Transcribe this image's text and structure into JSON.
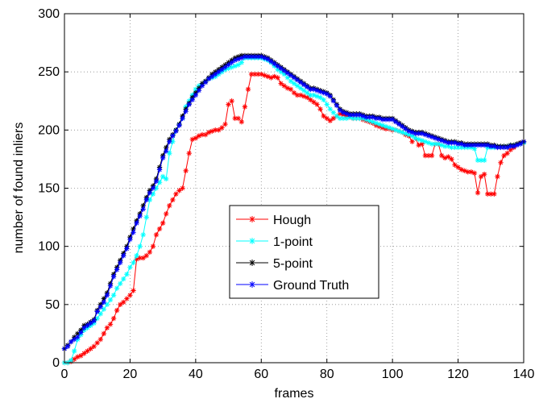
{
  "chart_data": {
    "type": "line",
    "xlabel": "frames",
    "ylabel": "number of found inliers",
    "xlim": [
      0,
      140
    ],
    "ylim": [
      0,
      300
    ],
    "xticks": [
      0,
      20,
      40,
      60,
      80,
      100,
      120,
      140
    ],
    "yticks": [
      0,
      50,
      100,
      150,
      200,
      250,
      300
    ],
    "grid": true,
    "legend_position": "center",
    "marker": "asterisk",
    "series": [
      {
        "name": "Hough",
        "color": "#ff0000",
        "x": [
          0,
          1,
          2,
          3,
          4,
          5,
          6,
          7,
          8,
          9,
          10,
          11,
          12,
          13,
          14,
          15,
          16,
          17,
          18,
          19,
          20,
          21,
          22,
          23,
          24,
          25,
          26,
          27,
          28,
          29,
          30,
          31,
          32,
          33,
          34,
          35,
          36,
          37,
          38,
          39,
          40,
          41,
          42,
          43,
          44,
          45,
          46,
          47,
          48,
          49,
          50,
          51,
          52,
          53,
          54,
          55,
          56,
          57,
          58,
          59,
          60,
          61,
          62,
          63,
          64,
          65,
          66,
          67,
          68,
          69,
          70,
          71,
          72,
          73,
          74,
          75,
          76,
          77,
          78,
          79,
          80,
          81,
          82,
          83,
          84,
          85,
          86,
          87,
          88,
          89,
          90,
          91,
          92,
          93,
          94,
          95,
          96,
          97,
          98,
          99,
          100,
          101,
          102,
          103,
          104,
          105,
          106,
          107,
          108,
          109,
          110,
          111,
          112,
          113,
          114,
          115,
          116,
          117,
          118,
          119,
          120,
          121,
          122,
          123,
          124,
          125,
          126,
          127,
          128,
          129,
          130,
          131,
          132,
          133,
          134,
          135,
          136,
          137,
          138,
          139,
          140
        ],
        "y": [
          0,
          0,
          1,
          3,
          5,
          6,
          8,
          10,
          12,
          14,
          17,
          20,
          25,
          30,
          33,
          38,
          45,
          50,
          52,
          55,
          58,
          62,
          89,
          90,
          90,
          92,
          95,
          100,
          110,
          115,
          120,
          128,
          135,
          140,
          145,
          148,
          150,
          165,
          180,
          192,
          193,
          195,
          196,
          196,
          198,
          199,
          200,
          200,
          202,
          205,
          222,
          225,
          210,
          210,
          207,
          220,
          235,
          248,
          248,
          248,
          248,
          247,
          246,
          245,
          246,
          245,
          240,
          238,
          236,
          235,
          232,
          230,
          230,
          229,
          228,
          226,
          224,
          222,
          218,
          212,
          210,
          208,
          210,
          212,
          214,
          213,
          212,
          211,
          210,
          210,
          210,
          209,
          208,
          207,
          206,
          204,
          203,
          202,
          201,
          201,
          200,
          200,
          199,
          198,
          196,
          195,
          190,
          193,
          187,
          188,
          178,
          178,
          178,
          188,
          188,
          178,
          176,
          177,
          175,
          170,
          168,
          166,
          165,
          164,
          164,
          163,
          146,
          160,
          162,
          145,
          145,
          145,
          160,
          172,
          178,
          180,
          183,
          185,
          188,
          189,
          190
        ]
      },
      {
        "name": "1-point",
        "color": "#00ffff",
        "x": [
          0,
          1,
          2,
          3,
          4,
          5,
          6,
          7,
          8,
          9,
          10,
          11,
          12,
          13,
          14,
          15,
          16,
          17,
          18,
          19,
          20,
          21,
          22,
          23,
          24,
          25,
          26,
          27,
          28,
          29,
          30,
          31,
          32,
          33,
          34,
          35,
          36,
          37,
          38,
          39,
          40,
          41,
          42,
          43,
          44,
          45,
          46,
          47,
          48,
          49,
          50,
          51,
          52,
          53,
          54,
          55,
          56,
          57,
          58,
          59,
          60,
          61,
          62,
          63,
          64,
          65,
          66,
          67,
          68,
          69,
          70,
          71,
          72,
          73,
          74,
          75,
          76,
          77,
          78,
          79,
          80,
          81,
          82,
          83,
          84,
          85,
          86,
          87,
          88,
          89,
          90,
          91,
          92,
          93,
          94,
          95,
          96,
          97,
          98,
          99,
          100,
          101,
          102,
          103,
          104,
          105,
          106,
          107,
          108,
          109,
          110,
          111,
          112,
          113,
          114,
          115,
          116,
          117,
          118,
          119,
          120,
          121,
          122,
          123,
          124,
          125,
          126,
          127,
          128,
          129,
          130,
          131,
          132,
          133,
          134,
          135,
          136,
          137,
          138,
          139,
          140
        ],
        "y": [
          0,
          0,
          2,
          10,
          20,
          24,
          28,
          30,
          32,
          34,
          38,
          42,
          46,
          50,
          54,
          58,
          64,
          68,
          72,
          76,
          82,
          86,
          92,
          100,
          110,
          125,
          140,
          145,
          150,
          155,
          160,
          158,
          180,
          190,
          200,
          205,
          210,
          220,
          225,
          230,
          235,
          238,
          240,
          242,
          244,
          245,
          246,
          248,
          250,
          252,
          253,
          254,
          255,
          256,
          258,
          262,
          262,
          262,
          262,
          262,
          262,
          261,
          260,
          258,
          255,
          252,
          250,
          248,
          245,
          242,
          240,
          238,
          236,
          234,
          232,
          230,
          230,
          229,
          228,
          226,
          222,
          218,
          215,
          212,
          210,
          210,
          210,
          211,
          210,
          210,
          210,
          210,
          209,
          208,
          207,
          206,
          205,
          204,
          203,
          202,
          201,
          200,
          199,
          198,
          197,
          196,
          195,
          193,
          192,
          191,
          190,
          189,
          188,
          188,
          188,
          187,
          186,
          186,
          185,
          185,
          185,
          185,
          185,
          185,
          185,
          184,
          174,
          174,
          174,
          185,
          185,
          185,
          186,
          186,
          186,
          186,
          187,
          187,
          188,
          188,
          189
        ]
      },
      {
        "name": "5-point",
        "color": "#000000",
        "x": [
          0,
          1,
          2,
          3,
          4,
          5,
          6,
          7,
          8,
          9,
          10,
          11,
          12,
          13,
          14,
          15,
          16,
          17,
          18,
          19,
          20,
          21,
          22,
          23,
          24,
          25,
          26,
          27,
          28,
          29,
          30,
          31,
          32,
          33,
          34,
          35,
          36,
          37,
          38,
          39,
          40,
          41,
          42,
          43,
          44,
          45,
          46,
          47,
          48,
          49,
          50,
          51,
          52,
          53,
          54,
          55,
          56,
          57,
          58,
          59,
          60,
          61,
          62,
          63,
          64,
          65,
          66,
          67,
          68,
          69,
          70,
          71,
          72,
          73,
          74,
          75,
          76,
          77,
          78,
          79,
          80,
          81,
          82,
          83,
          84,
          85,
          86,
          87,
          88,
          89,
          90,
          91,
          92,
          93,
          94,
          95,
          96,
          97,
          98,
          99,
          100,
          101,
          102,
          103,
          104,
          105,
          106,
          107,
          108,
          109,
          110,
          111,
          112,
          113,
          114,
          115,
          116,
          117,
          118,
          119,
          120,
          121,
          122,
          123,
          124,
          125,
          126,
          127,
          128,
          129,
          130,
          131,
          132,
          133,
          134,
          135,
          136,
          137,
          138,
          139,
          140
        ],
        "y": [
          12,
          15,
          18,
          22,
          25,
          28,
          32,
          33,
          35,
          37,
          45,
          50,
          55,
          60,
          68,
          76,
          82,
          88,
          94,
          100,
          108,
          115,
          122,
          128,
          135,
          142,
          148,
          152,
          158,
          168,
          178,
          185,
          192,
          196,
          200,
          205,
          212,
          218,
          223,
          228,
          232,
          236,
          240,
          242,
          245,
          248,
          250,
          252,
          254,
          256,
          258,
          260,
          262,
          263,
          264,
          264,
          264,
          264,
          264,
          264,
          264,
          263,
          262,
          260,
          258,
          256,
          254,
          252,
          250,
          248,
          246,
          244,
          242,
          240,
          238,
          236,
          236,
          235,
          234,
          233,
          232,
          230,
          226,
          222,
          218,
          216,
          215,
          214,
          214,
          214,
          214,
          213,
          212,
          212,
          212,
          211,
          211,
          210,
          210,
          210,
          210,
          208,
          206,
          204,
          202,
          200,
          199,
          198,
          198,
          198,
          197,
          196,
          195,
          194,
          193,
          192,
          191,
          190,
          190,
          190,
          189,
          189,
          188,
          188,
          188,
          188,
          188,
          188,
          188,
          188,
          187,
          187,
          186,
          186,
          186,
          186,
          187,
          187,
          188,
          189,
          190
        ]
      },
      {
        "name": "Ground Truth",
        "color": "#0000ff",
        "x": [
          0,
          1,
          2,
          3,
          4,
          5,
          6,
          7,
          8,
          9,
          10,
          11,
          12,
          13,
          14,
          15,
          16,
          17,
          18,
          19,
          20,
          21,
          22,
          23,
          24,
          25,
          26,
          27,
          28,
          29,
          30,
          31,
          32,
          33,
          34,
          35,
          36,
          37,
          38,
          39,
          40,
          41,
          42,
          43,
          44,
          45,
          46,
          47,
          48,
          49,
          50,
          51,
          52,
          53,
          54,
          55,
          56,
          57,
          58,
          59,
          60,
          61,
          62,
          63,
          64,
          65,
          66,
          67,
          68,
          69,
          70,
          71,
          72,
          73,
          74,
          75,
          76,
          77,
          78,
          79,
          80,
          81,
          82,
          83,
          84,
          85,
          86,
          87,
          88,
          89,
          90,
          91,
          92,
          93,
          94,
          95,
          96,
          97,
          98,
          99,
          100,
          101,
          102,
          103,
          104,
          105,
          106,
          107,
          108,
          109,
          110,
          111,
          112,
          113,
          114,
          115,
          116,
          117,
          118,
          119,
          120,
          121,
          122,
          123,
          124,
          125,
          126,
          127,
          128,
          129,
          130,
          131,
          132,
          133,
          134,
          135,
          136,
          137,
          138,
          139,
          140
        ],
        "y": [
          12,
          14,
          18,
          20,
          22,
          26,
          30,
          32,
          34,
          36,
          44,
          48,
          52,
          58,
          66,
          74,
          80,
          86,
          92,
          98,
          106,
          112,
          120,
          126,
          132,
          140,
          146,
          150,
          156,
          166,
          176,
          182,
          190,
          195,
          199,
          204,
          210,
          216,
          222,
          226,
          230,
          234,
          238,
          241,
          244,
          246,
          248,
          250,
          252,
          254,
          256,
          258,
          260,
          261,
          262,
          263,
          263,
          263,
          263,
          263,
          263,
          262,
          261,
          259,
          257,
          255,
          253,
          251,
          249,
          247,
          245,
          243,
          241,
          239,
          237,
          235,
          235,
          234,
          233,
          232,
          231,
          229,
          225,
          221,
          217,
          215,
          214,
          213,
          213,
          213,
          213,
          212,
          211,
          211,
          211,
          210,
          210,
          209,
          209,
          209,
          209,
          207,
          205,
          203,
          201,
          199,
          198,
          197,
          197,
          197,
          196,
          195,
          194,
          193,
          192,
          191,
          190,
          189,
          189,
          189,
          188,
          188,
          187,
          187,
          187,
          187,
          187,
          187,
          187,
          187,
          186,
          186,
          185,
          185,
          185,
          185,
          186,
          186,
          187,
          188,
          190
        ]
      }
    ]
  }
}
